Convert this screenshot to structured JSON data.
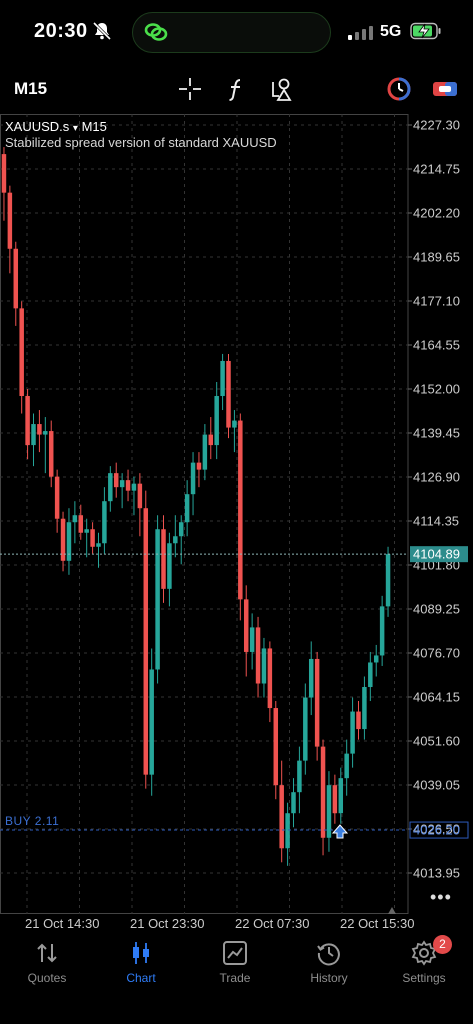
{
  "status_bar": {
    "time": "20:30",
    "network": "5G"
  },
  "toolbar": {
    "timeframe": "M15"
  },
  "chart_header": {
    "symbol": "XAUUSD.s",
    "dropdown": "▾",
    "period": "M15",
    "description": "Stabilized spread version of standard XAUUSD"
  },
  "position": {
    "label": "BUY 2.11",
    "price": "4026.20"
  },
  "current_price": "4104.89",
  "more_label": "•••",
  "chart_data": {
    "type": "candlestick",
    "y_ticks": [
      "4227.30",
      "4214.75",
      "4202.20",
      "4189.65",
      "4177.10",
      "4164.55",
      "4152.00",
      "4139.45",
      "4126.90",
      "4114.35",
      "4101.80",
      "4089.25",
      "4076.70",
      "4064.15",
      "4051.60",
      "4039.05",
      "4026.50",
      "4013.95"
    ],
    "ylim": [
      4008.0,
      4230.0
    ],
    "x_ticks": [
      "21 Oct 14:30",
      "21 Oct 23:30",
      "22 Oct 07:30",
      "22 Oct 15:30"
    ],
    "current_price": 4104.89,
    "buy_level": 4026.2,
    "colors": {
      "up": "#26a69a",
      "down": "#ef5350",
      "grid": "#333333",
      "price_line": "#8fb8b8",
      "buy_line": "#2e5bbd"
    },
    "candles": [
      [
        4219,
        4221,
        4200,
        4208
      ],
      [
        4208,
        4210,
        4185,
        4192
      ],
      [
        4192,
        4194,
        4170,
        4175
      ],
      [
        4175,
        4177,
        4145,
        4150
      ],
      [
        4150,
        4152,
        4132,
        4136
      ],
      [
        4136,
        4145,
        4130,
        4142
      ],
      [
        4142,
        4146,
        4134,
        4139
      ],
      [
        4139,
        4144,
        4128,
        4140
      ],
      [
        4140,
        4143,
        4124,
        4127
      ],
      [
        4127,
        4129,
        4111,
        4115
      ],
      [
        4115,
        4117,
        4100,
        4103
      ],
      [
        4103,
        4118,
        4099,
        4114
      ],
      [
        4114,
        4120,
        4108,
        4116
      ],
      [
        4116,
        4119,
        4109,
        4111
      ],
      [
        4111,
        4115,
        4104,
        4112
      ],
      [
        4112,
        4114,
        4105,
        4107
      ],
      [
        4107,
        4111,
        4101,
        4108
      ],
      [
        4108,
        4124,
        4105,
        4120
      ],
      [
        4120,
        4130,
        4117,
        4128
      ],
      [
        4128,
        4131,
        4121,
        4124
      ],
      [
        4124,
        4128,
        4118,
        4126
      ],
      [
        4126,
        4129,
        4120,
        4123
      ],
      [
        4123,
        4127,
        4116,
        4125
      ],
      [
        4125,
        4128,
        4110,
        4118
      ],
      [
        4118,
        4123,
        4038,
        4042
      ],
      [
        4042,
        4078,
        4036,
        4072
      ],
      [
        4072,
        4116,
        4068,
        4112
      ],
      [
        4112,
        4116,
        4091,
        4095
      ],
      [
        4095,
        4111,
        4090,
        4108
      ],
      [
        4108,
        4116,
        4104,
        4110
      ],
      [
        4110,
        4116,
        4102,
        4114
      ],
      [
        4114,
        4126,
        4110,
        4122
      ],
      [
        4122,
        4134,
        4116,
        4131
      ],
      [
        4131,
        4134,
        4124,
        4129
      ],
      [
        4129,
        4142,
        4126,
        4139
      ],
      [
        4139,
        4144,
        4132,
        4136
      ],
      [
        4136,
        4154,
        4132,
        4150
      ],
      [
        4150,
        4162,
        4146,
        4160
      ],
      [
        4160,
        4162,
        4138,
        4141
      ],
      [
        4141,
        4146,
        4134,
        4143
      ],
      [
        4143,
        4145,
        4086,
        4092
      ],
      [
        4092,
        4096,
        4070,
        4077
      ],
      [
        4077,
        4088,
        4072,
        4084
      ],
      [
        4084,
        4087,
        4064,
        4068
      ],
      [
        4068,
        4081,
        4064,
        4078
      ],
      [
        4078,
        4080,
        4057,
        4061
      ],
      [
        4061,
        4063,
        4035,
        4039
      ],
      [
        4039,
        4046,
        4017,
        4021
      ],
      [
        4021,
        4034,
        4016,
        4031
      ],
      [
        4031,
        4041,
        4027,
        4037
      ],
      [
        4037,
        4050,
        4031,
        4046
      ],
      [
        4046,
        4068,
        4042,
        4064
      ],
      [
        4064,
        4080,
        4059,
        4075
      ],
      [
        4075,
        4077,
        4046,
        4050
      ],
      [
        4050,
        4052,
        4019,
        4024
      ],
      [
        4024,
        4043,
        4020,
        4039
      ],
      [
        4039,
        4042,
        4028,
        4031
      ],
      [
        4031,
        4044,
        4028,
        4041
      ],
      [
        4041,
        4052,
        4036,
        4048
      ],
      [
        4048,
        4064,
        4044,
        4060
      ],
      [
        4060,
        4063,
        4052,
        4055
      ],
      [
        4055,
        4070,
        4052,
        4067
      ],
      [
        4067,
        4077,
        4063,
        4074
      ],
      [
        4074,
        4079,
        4070,
        4076
      ],
      [
        4076,
        4093,
        4073,
        4090
      ],
      [
        4090,
        4107,
        4087,
        4104.89
      ]
    ]
  },
  "nav": [
    {
      "label": "Quotes",
      "icon": "quotes-icon"
    },
    {
      "label": "Chart",
      "icon": "chart-icon"
    },
    {
      "label": "Trade",
      "icon": "trade-icon"
    },
    {
      "label": "History",
      "icon": "history-icon"
    },
    {
      "label": "Settings",
      "icon": "settings-icon"
    }
  ],
  "settings_badge": "2"
}
